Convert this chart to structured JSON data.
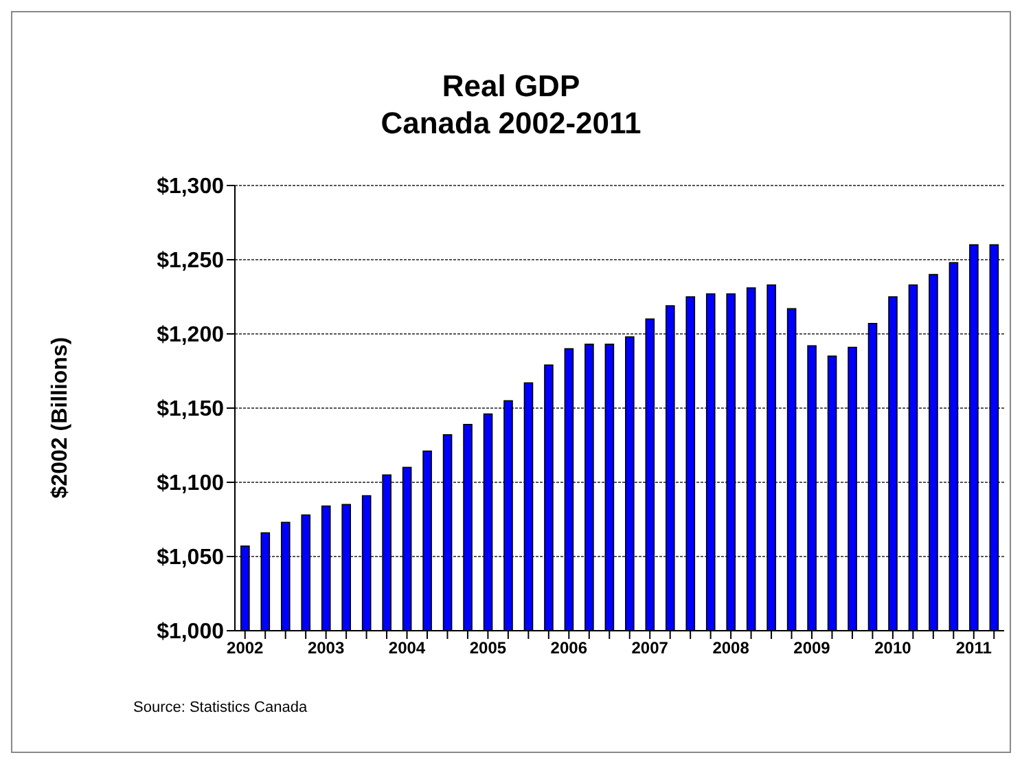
{
  "chart_data": {
    "type": "bar",
    "title": "Real GDP",
    "subtitle": "Canada 2002-2011",
    "ylabel": "$2002 (Billions)",
    "categories": [
      "2002",
      null,
      null,
      null,
      "2003",
      null,
      null,
      null,
      "2004",
      null,
      null,
      null,
      "2005",
      null,
      null,
      null,
      "2006",
      null,
      null,
      null,
      "2007",
      null,
      null,
      null,
      "2008",
      null,
      null,
      null,
      "2009",
      null,
      null,
      null,
      "2010",
      null,
      null,
      null,
      "2011",
      null
    ],
    "values": [
      1057,
      1066,
      1073,
      1078,
      1084,
      1085,
      1091,
      1105,
      1110,
      1121,
      1132,
      1139,
      1146,
      1155,
      1167,
      1179,
      1190,
      1193,
      1193,
      1198,
      1210,
      1219,
      1225,
      1227,
      1227,
      1231,
      1233,
      1217,
      1192,
      1185,
      1191,
      1207,
      1225,
      1233,
      1240,
      1248,
      1260,
      1260
    ],
    "color": "#0000ff",
    "ylim": [
      1000,
      1300
    ],
    "yticks": [
      {
        "value": 1000,
        "label": "$1,000"
      },
      {
        "value": 1050,
        "label": "$1,050"
      },
      {
        "value": 1100,
        "label": "$1,100"
      },
      {
        "value": 1150,
        "label": "$1,150"
      },
      {
        "value": 1200,
        "label": "$1,200"
      },
      {
        "value": 1250,
        "label": "$1,250"
      },
      {
        "value": 1300,
        "label": "$1,300"
      }
    ],
    "grid": "y",
    "legend": false,
    "annotations": [
      "Source: Statistics Canada"
    ]
  }
}
